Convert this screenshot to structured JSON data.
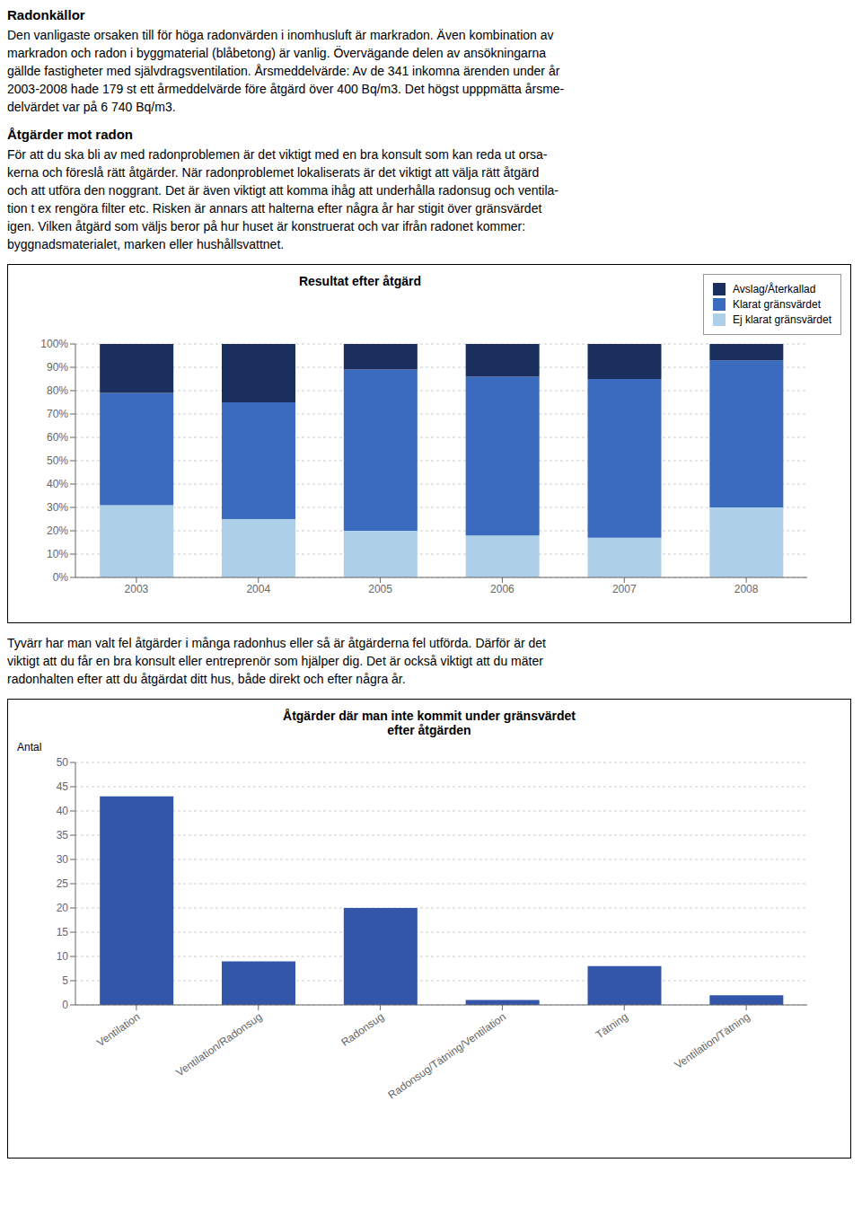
{
  "chart_data": [
    {
      "type": "bar",
      "title": "Resultat efter åtgärd",
      "annotations": [
        "Radonkällor",
        "Den vanligaste orsaken till för höga radonvärden i inomhusluft är markradon. Även kombination av\nmarkradon och radon i byggmaterial (blåbetong) är vanlig. Övervägande delen av ansökningarna\ngällde fastigheter med självdragsventilation. Årsmeddelvärde: Av de 341 inkomna ärenden under år\n2003-2008 hade 179 st ett årmeddelvärde före åtgärd över 400 Bq/m3. Det högst upppmätta årsme-\ndelvärdet var på 6 740 Bq/m3.",
        "Åtgärder mot radon",
        "För att du ska bli av med radonproblemen är det viktigt med en bra konsult som kan reda ut orsa-\nkerna och föreslå rätt åtgärder. När radonproblemet lokaliserats är det viktigt att välja rätt åtgärd\noch att utföra den noggrant. Det är även viktigt att komma ihåg att underhålla radonsug och ventila-\ntion t ex rengöra filter etc. Risken är annars att halterna efter några år har stigit över gränsvärdet\nigen. Vilken åtgärd som väljs beror på hur huset är konstruerat och var ifrån radonet kommer:\nbyggnadsmaterialet, marken eller hushållsvattnet."
      ],
      "categories": [
        "2003",
        "2004",
        "2005",
        "2006",
        "2007",
        "2008"
      ],
      "series": [
        {
          "name": "Ej klarat gränsvärdet",
          "color": "#aecfe8",
          "values": [
            31,
            25,
            20,
            18,
            17,
            30
          ]
        },
        {
          "name": "Klarat gränsvärdet",
          "color": "#3a6bbf",
          "values": [
            48,
            50,
            69,
            68,
            68,
            63
          ]
        },
        {
          "name": "Avslag/Återkallad",
          "color": "#1a2f5e",
          "values": [
            21,
            25,
            11,
            14,
            15,
            7
          ]
        }
      ],
      "stacked": true,
      "ylim": [
        0,
        100
      ],
      "yticks": [
        {
          "value": 0,
          "label": "0%"
        },
        {
          "value": 10,
          "label": "10%"
        },
        {
          "value": 20,
          "label": "20%"
        },
        {
          "value": 30,
          "label": "30%"
        },
        {
          "value": 40,
          "label": "40%"
        },
        {
          "value": 50,
          "label": "50%"
        },
        {
          "value": 60,
          "label": "60%"
        },
        {
          "value": 70,
          "label": "70%"
        },
        {
          "value": 80,
          "label": "80%"
        },
        {
          "value": 90,
          "label": "90%"
        },
        {
          "value": 100,
          "label": "100%"
        }
      ],
      "grid": true,
      "legend": "upper right"
    },
    {
      "type": "bar",
      "annotations": [
        "Tyvärr har man valt fel åtgärder i många radonhus eller så är åtgärderna fel utförda. Därför är det\nviktigt att du får en bra konsult eller entreprenör som hjälper dig. Det är också viktigt att du mäter\nradonhalten efter att du åtgärdat ditt hus, både direkt och efter några år."
      ],
      "title": "Åtgärder där man inte kommit under gränsvärdet",
      "subtitle": "efter åtgärden",
      "y_label": "Antal",
      "categories": [
        "Ventilation",
        "Ventilation/Radonsug",
        "Radonsug",
        "Radonsug/Tätning/Ventilation",
        "Tätning",
        "Ventilation/Tätning"
      ],
      "values": [
        43,
        9,
        20,
        1,
        8,
        2
      ],
      "color": "#3355aa",
      "ylim": [
        0,
        50
      ],
      "yticks": [
        0,
        5,
        10,
        15,
        20,
        25,
        30,
        35,
        40,
        45,
        50
      ],
      "grid": true
    }
  ]
}
